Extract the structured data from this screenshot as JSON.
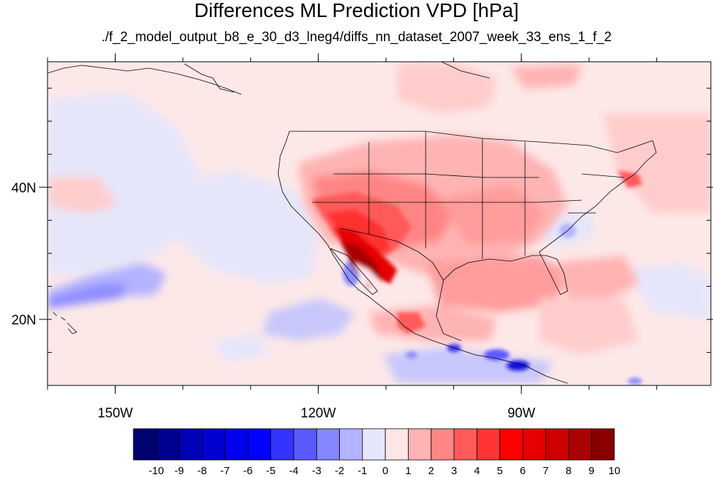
{
  "title": "Differences ML Prediction VPD [hPa]",
  "subtitle": "./f_2_model_output_b8_e_30_d3_lneg4/diffs_nn_dataset_2007_week_33_ens_1_f_2",
  "map": {
    "lon_range": [
      -160,
      -62
    ],
    "lat_range": [
      10,
      59
    ],
    "lon_ticks": [
      {
        "value": -150,
        "label": "150W"
      },
      {
        "value": -120,
        "label": "120W"
      },
      {
        "value": -90,
        "label": "90W"
      }
    ],
    "lat_ticks": [
      {
        "value": 40,
        "label": "40N"
      },
      {
        "value": 20,
        "label": "20N"
      }
    ],
    "background_color": "#fde8e8"
  },
  "colorbar": {
    "labels": [
      "-10",
      "-9",
      "-8",
      "-7",
      "-6",
      "-5",
      "-4",
      "-3",
      "-2",
      "-1",
      "0",
      "1",
      "2",
      "3",
      "4",
      "5",
      "6",
      "7",
      "8",
      "9",
      "10"
    ],
    "colors": [
      "#00006e",
      "#000090",
      "#0000b4",
      "#0000d2",
      "#0000ee",
      "#0000ff",
      "#3333ff",
      "#5a5aff",
      "#8585ff",
      "#b3b3ff",
      "#e6e6fa",
      "#ffe6e6",
      "#ffb3b3",
      "#ff8585",
      "#ff5a5a",
      "#ff3333",
      "#ff0000",
      "#e60000",
      "#cc0000",
      "#aa0000",
      "#880000"
    ]
  }
}
